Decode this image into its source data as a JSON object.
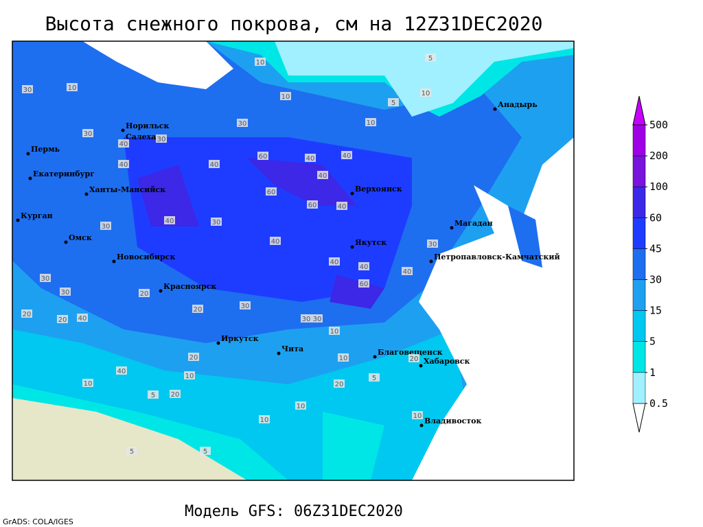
{
  "title": "Высота снежного покрова, см на 12Z31DEC2020",
  "footer": "Модель GFS: 06Z31DEC2020",
  "credit": "GrADS: COLA/IGES",
  "legend": {
    "levels": [
      0.5,
      1,
      5,
      15,
      30,
      45,
      60,
      100,
      200,
      500
    ],
    "colors": [
      "#ffffff",
      "#a0f0ff",
      "#00e6e6",
      "#00c8f0",
      "#1ea0f0",
      "#1e6ef0",
      "#1e3cff",
      "#3c28e6",
      "#7814dc",
      "#a000e6",
      "#c800ff"
    ]
  },
  "cities": [
    "Анадырь",
    "Норильск",
    "Салехард",
    "Пермь",
    "Екатеринбург",
    "Ханты-Мансийск",
    "Курган",
    "Омск",
    "Новосибирск",
    "Красноярск",
    "Иркутск",
    "Чита",
    "Благовещенск",
    "Хабаровск",
    "Владивосток",
    "Верхоянск",
    "Якутск",
    "Магадан",
    "Петропавловск-Камчатский"
  ],
  "contour_labels": [
    10,
    5,
    10,
    10,
    5,
    10,
    10,
    30,
    30,
    30,
    40,
    40,
    30,
    40,
    60,
    40,
    40,
    40,
    60,
    40,
    60,
    30,
    40,
    30,
    30,
    40,
    40,
    40,
    40,
    60,
    30,
    30,
    20,
    20,
    40,
    20,
    30,
    10,
    10,
    20,
    20,
    10,
    5,
    10,
    20,
    5,
    10,
    5,
    20,
    10,
    5,
    10,
    40,
    30,
    20,
    30
  ]
}
